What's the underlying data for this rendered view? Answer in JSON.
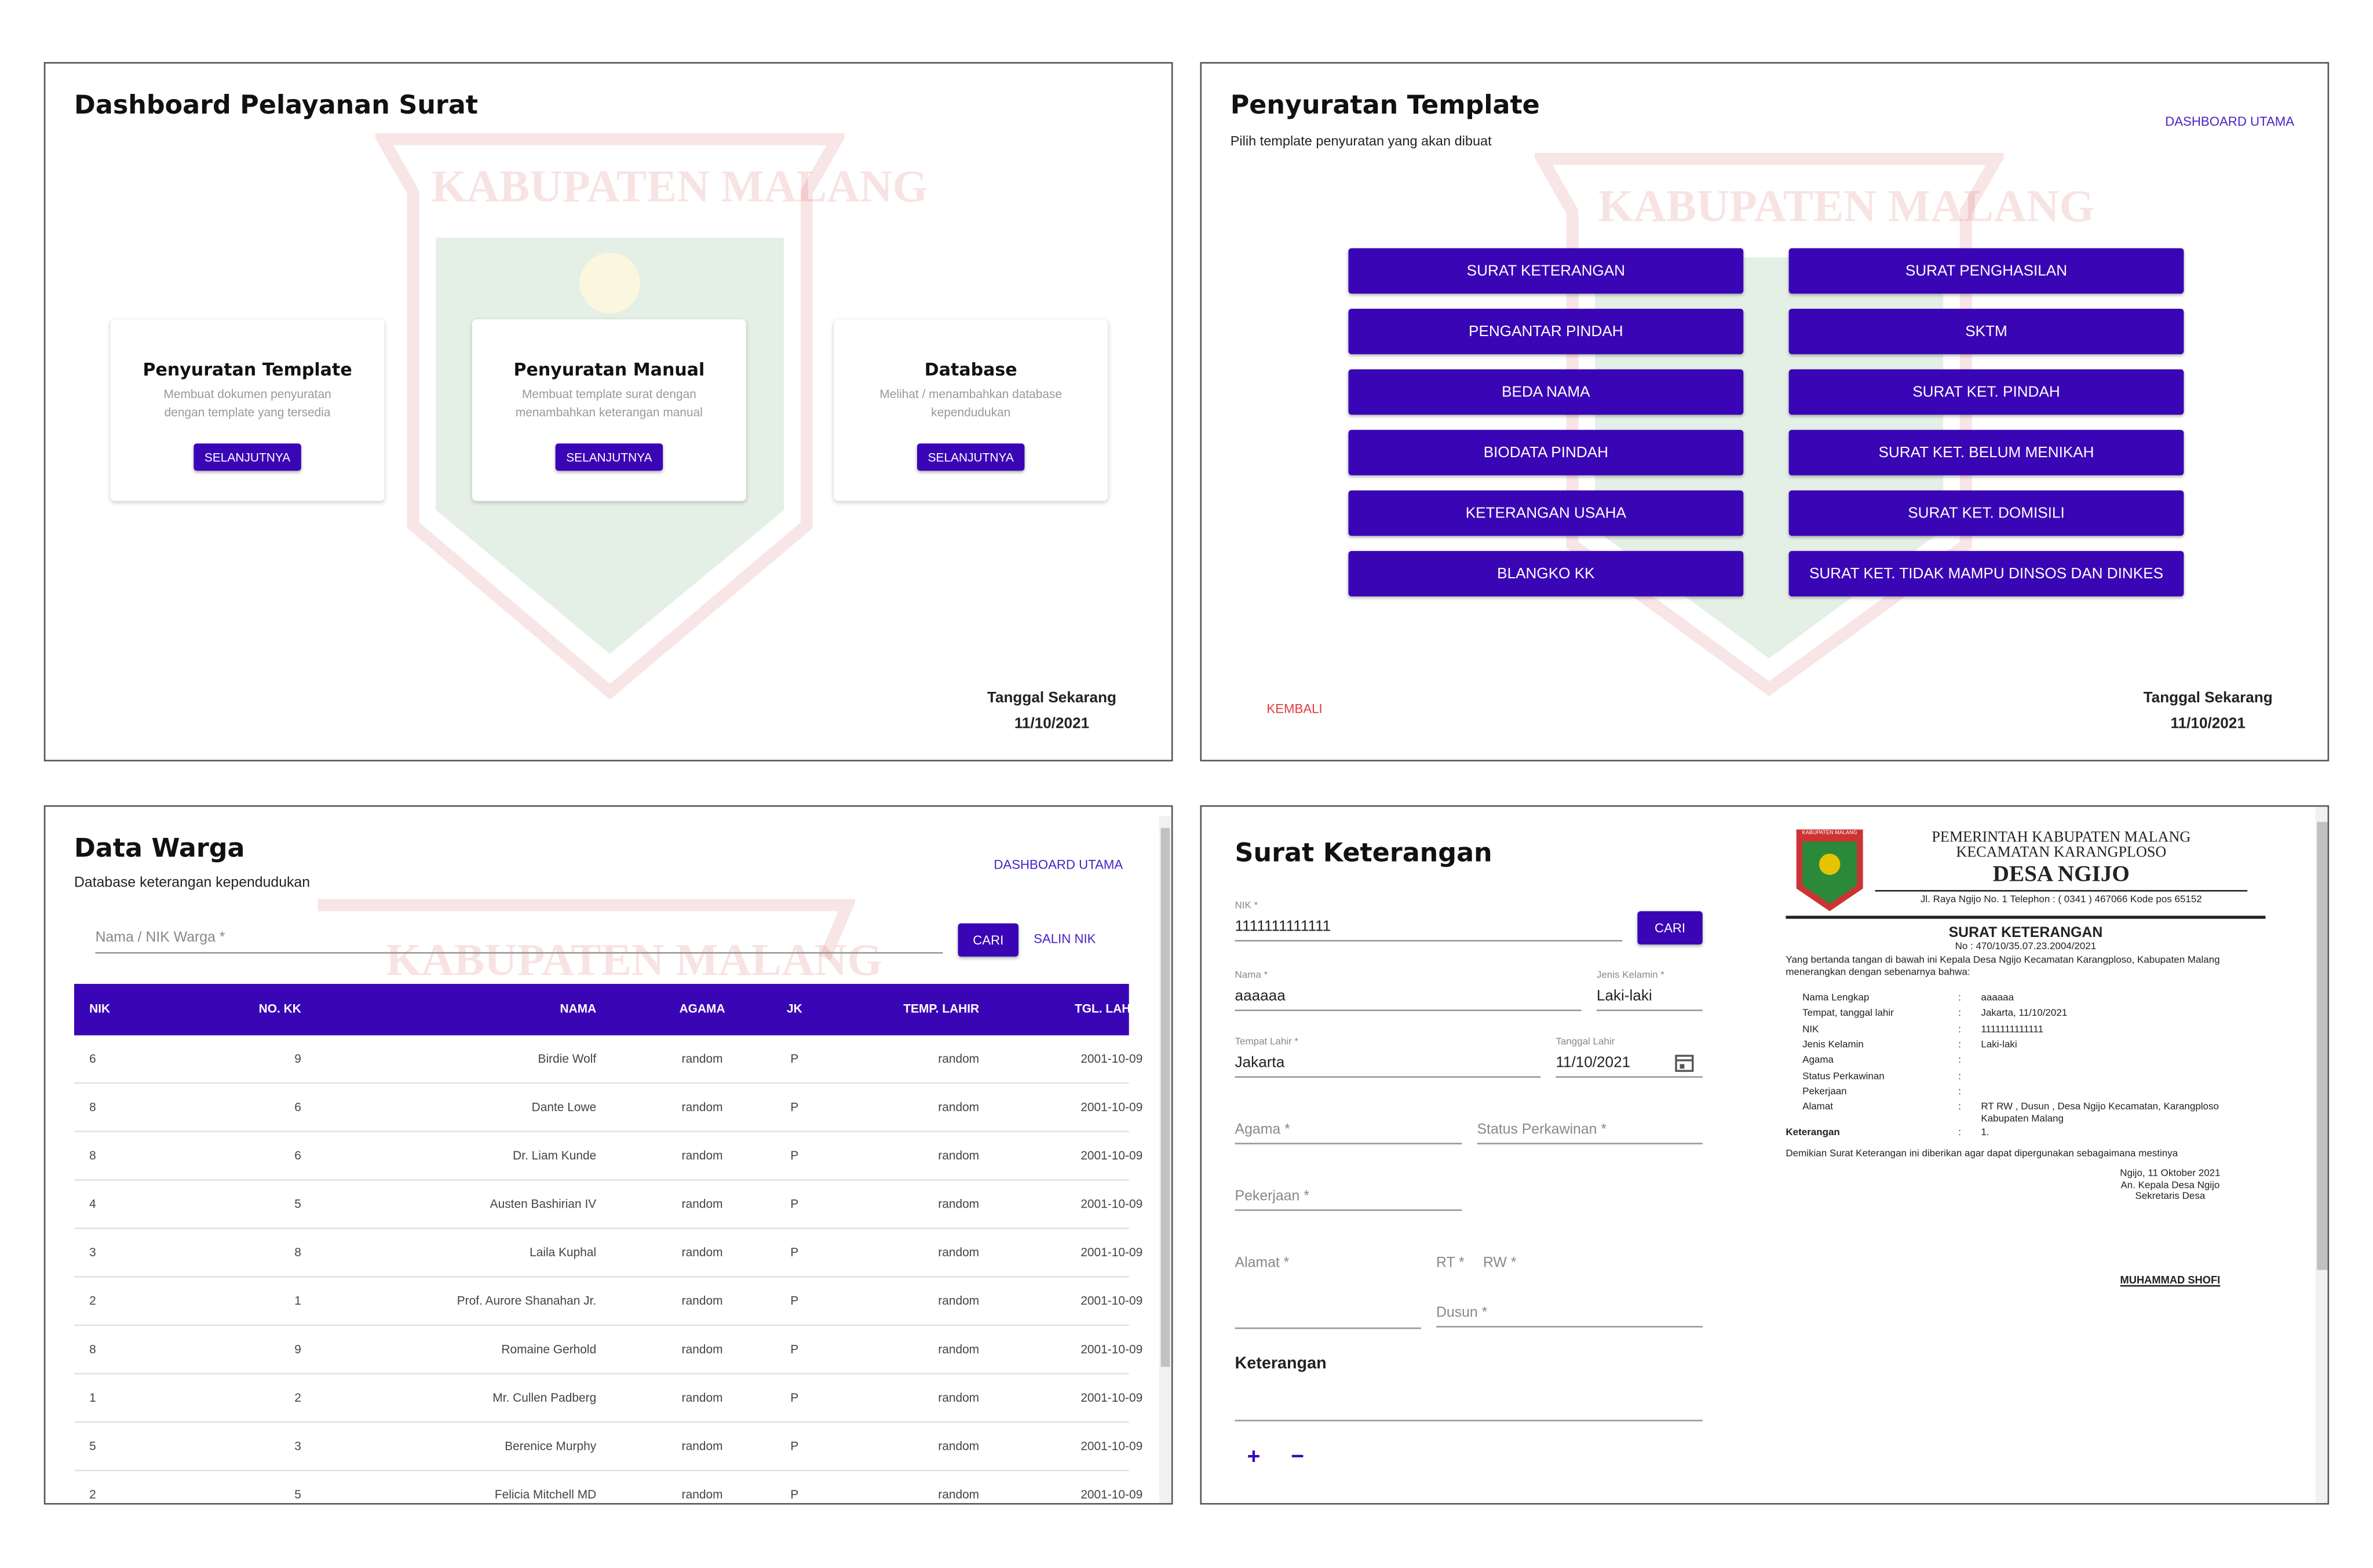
{
  "watermark": "KABUPATEN MALANG",
  "dashboard": {
    "title": "Dashboard Pelayanan Surat",
    "cards": [
      {
        "title": "Penyuratan Template",
        "description": "Membuat dokumen penyuratan dengan template yang tersedia",
        "button": "SELANJUTNYA"
      },
      {
        "title": "Penyuratan Manual",
        "description": "Membuat template surat dengan menambahkan keterangan manual",
        "button": "SELANJUTNYA"
      },
      {
        "title": "Database",
        "description": "Melihat / menambahkan database kependudukan",
        "button": "SELANJUTNYA"
      }
    ],
    "date_label": "Tanggal Sekarang",
    "date": "11/10/2021"
  },
  "template": {
    "title": "Penyuratan Template",
    "subtitle": "Pilih template penyuratan yang akan dibuat",
    "nav": "DASHBOARD UTAMA",
    "buttons": [
      "SURAT KETERANGAN",
      "SURAT PENGHASILAN",
      "PENGANTAR PINDAH",
      "SKTM",
      "BEDA NAMA",
      "SURAT KET. PINDAH",
      "BIODATA PINDAH",
      "SURAT KET. BELUM MENIKAH",
      "KETERANGAN USAHA",
      "SURAT KET. DOMISILI",
      "BLANGKO KK",
      "SURAT KET. TIDAK MAMPU DINSOS DAN DINKES"
    ],
    "back": "KEMBALI",
    "date_label": "Tanggal Sekarang",
    "date": "11/10/2021"
  },
  "data_warga": {
    "title": "Data Warga",
    "subtitle": "Database keterangan kependudukan",
    "nav": "DASHBOARD UTAMA",
    "search_placeholder": "Nama / NIK Warga *",
    "search_button": "CARI",
    "copy_button": "SALIN NIK",
    "columns": [
      "NIK",
      "NO. KK",
      "NAMA",
      "AGAMA",
      "JK",
      "TEMP. LAHIR",
      "TGL. LAHIR"
    ],
    "rows": [
      [
        "6",
        "9",
        "Birdie Wolf",
        "random",
        "P",
        "random",
        "2001-10-09"
      ],
      [
        "8",
        "6",
        "Dante Lowe",
        "random",
        "P",
        "random",
        "2001-10-09"
      ],
      [
        "8",
        "6",
        "Dr. Liam Kunde",
        "random",
        "P",
        "random",
        "2001-10-09"
      ],
      [
        "4",
        "5",
        "Austen Bashirian IV",
        "random",
        "P",
        "random",
        "2001-10-09"
      ],
      [
        "3",
        "8",
        "Laila Kuphal",
        "random",
        "P",
        "random",
        "2001-10-09"
      ],
      [
        "2",
        "1",
        "Prof. Aurore Shanahan Jr.",
        "random",
        "P",
        "random",
        "2001-10-09"
      ],
      [
        "8",
        "9",
        "Romaine Gerhold",
        "random",
        "P",
        "random",
        "2001-10-09"
      ],
      [
        "1",
        "2",
        "Mr. Cullen Padberg",
        "random",
        "P",
        "random",
        "2001-10-09"
      ],
      [
        "5",
        "3",
        "Berenice Murphy",
        "random",
        "P",
        "random",
        "2001-10-09"
      ],
      [
        "2",
        "5",
        "Felicia Mitchell MD",
        "random",
        "P",
        "random",
        "2001-10-09"
      ]
    ]
  },
  "surat": {
    "title": "Surat Keterangan",
    "form": {
      "nik_label": "NIK *",
      "nik": "1111111111111",
      "search_button": "CARI",
      "nama_label": "Nama *",
      "nama": "aaaaaa",
      "jk_label": "Jenis Kelamin *",
      "jk": "Laki-laki",
      "tempat_label": "Tempat Lahir *",
      "tempat": "Jakarta",
      "tanggal_label": "Tanggal Lahir",
      "tanggal": "11/10/2021",
      "agama": "Agama *",
      "status": "Status Perkawinan *",
      "pekerjaan": "Pekerjaan *",
      "alamat": "Alamat *",
      "rt": "RT *",
      "rw": "RW *",
      "dusun": "Dusun *",
      "keterangan": "Keterangan",
      "add": "+",
      "remove": "−"
    },
    "letter": {
      "logo_text": "KABUPATEN MALANG",
      "header1": "PEMERINTAH KABUPATEN MALANG",
      "header2": "KECAMATAN KARANGPLOSO",
      "header3": "DESA NGIJO",
      "address": "Jl. Raya Ngijo No. 1 Telephon : ( 0341 ) 467066 Kode pos 65152",
      "title": "SURAT KETERANGAN",
      "number": "No : 470/10/35.07.23.2004/2021",
      "intro": "Yang bertanda tangan di bawah ini Kepala Desa Ngijo Kecamatan Karangploso, Kabupaten Malang menerangkan dengan sebenarnya bahwa:",
      "separator": ":",
      "rows": [
        {
          "label": "Nama Lengkap",
          "value": "aaaaaa"
        },
        {
          "label": "Tempat, tanggal lahir",
          "value": "Jakarta, 11/10/2021"
        },
        {
          "label": "NIK",
          "value": "1111111111111"
        },
        {
          "label": "Jenis Kelamin",
          "value": "Laki-laki"
        },
        {
          "label": "Agama"
        },
        {
          "label": "Status Perkawinan"
        },
        {
          "label": "Pekerjaan"
        },
        {
          "label": "Alamat",
          "value": "RT  RW  , Dusun , Desa Ngijo Kecamatan, Karangploso Kabupaten Malang"
        },
        {
          "label": "Keterangan",
          "value": "1."
        }
      ],
      "closing": "Demikian Surat Keterangan ini diberikan agar dapat dipergunakan sebagaimana mestinya",
      "place_date": "Ngijo, 11 Oktober 2021",
      "sign1": "An. Kepala Desa Ngijo",
      "sign2": "Sekretaris Desa",
      "signer": "MUHAMMAD SHOFI"
    }
  }
}
